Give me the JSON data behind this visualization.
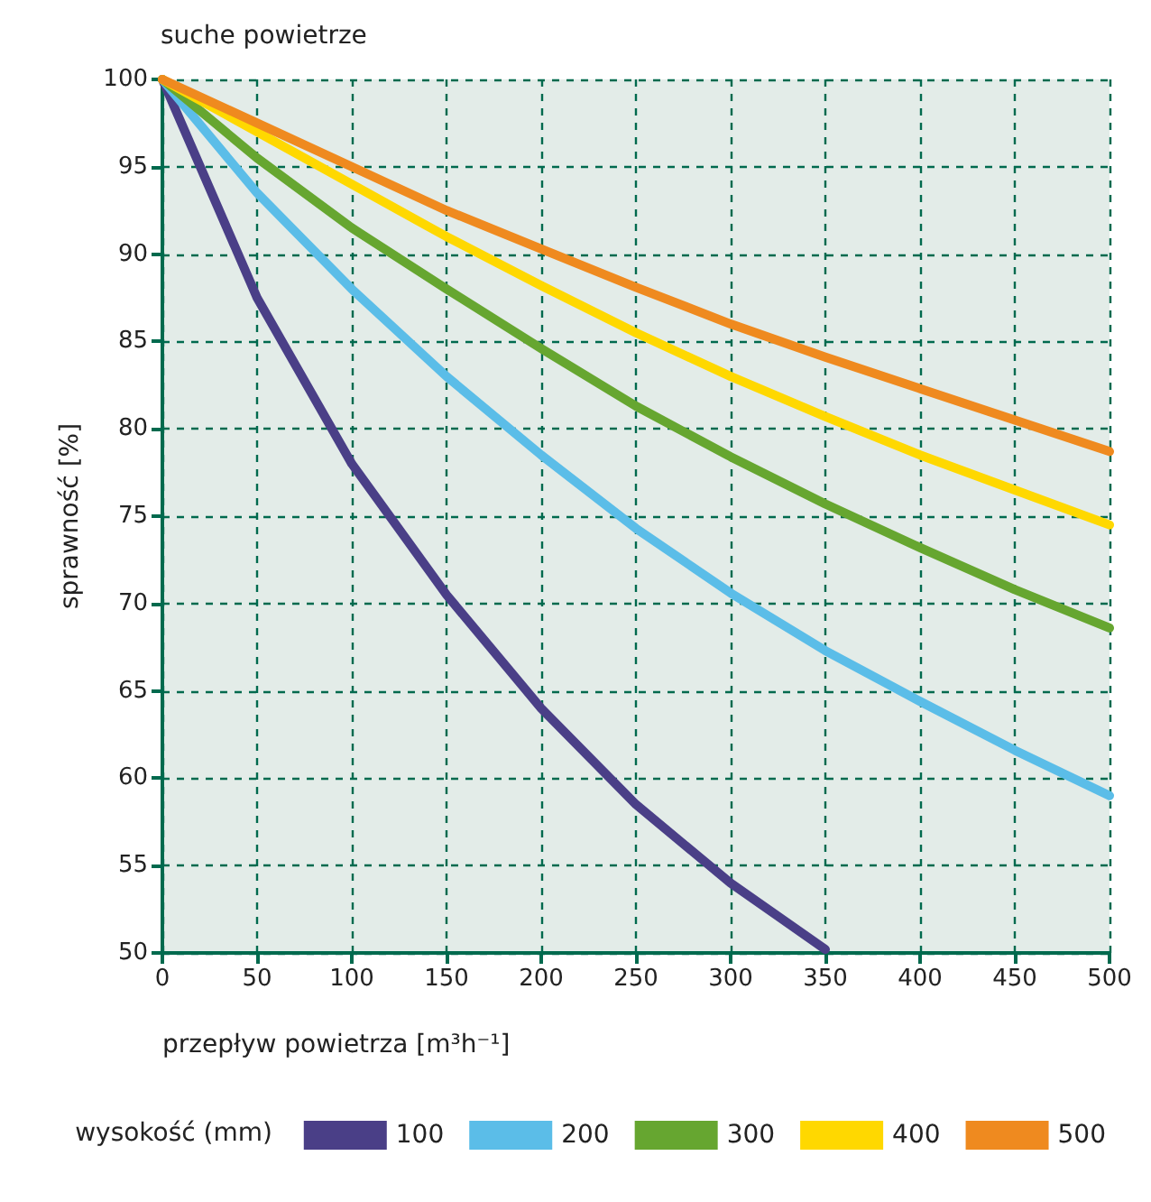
{
  "chart_data": {
    "type": "line",
    "title": "suche powietrze",
    "xlabel": "przepływ powietrza [m³h⁻¹]",
    "ylabel": "sprawność [%]",
    "legend_title": "wysokość (mm)",
    "x": [
      0,
      50,
      100,
      150,
      200,
      250,
      300,
      350,
      400,
      450,
      500
    ],
    "series": [
      {
        "name": "100",
        "color": "#4a3f87",
        "values": [
          100,
          87.5,
          78,
          70.5,
          64,
          58.5,
          54,
          50.2,
          null,
          null,
          null
        ]
      },
      {
        "name": "200",
        "color": "#5bbde8",
        "values": [
          100,
          93.5,
          88,
          83,
          78.5,
          74.3,
          70.6,
          67.3,
          64.4,
          61.6,
          59
        ]
      },
      {
        "name": "300",
        "color": "#66a630",
        "values": [
          100,
          95.5,
          91.5,
          88,
          84.6,
          81.3,
          78.4,
          75.7,
          73.2,
          70.8,
          68.6
        ]
      },
      {
        "name": "400",
        "color": "#ffd800",
        "values": [
          100,
          97,
          94,
          91,
          88.2,
          85.5,
          83,
          80.7,
          78.5,
          76.5,
          74.5
        ]
      },
      {
        "name": "500",
        "color": "#ef8a1f",
        "values": [
          100,
          97.5,
          95,
          92.5,
          90.3,
          88.1,
          86,
          84.1,
          82.3,
          80.5,
          78.7
        ]
      }
    ],
    "xlim": [
      0,
      500
    ],
    "xticks": [
      0,
      50,
      100,
      150,
      200,
      250,
      300,
      350,
      400,
      450,
      500
    ],
    "ylim": [
      50,
      100
    ],
    "yticks": [
      50,
      55,
      60,
      65,
      70,
      75,
      80,
      85,
      90,
      95,
      100
    ],
    "grid": true,
    "legend": "bottom",
    "marker": "none",
    "line_style": "solid"
  }
}
